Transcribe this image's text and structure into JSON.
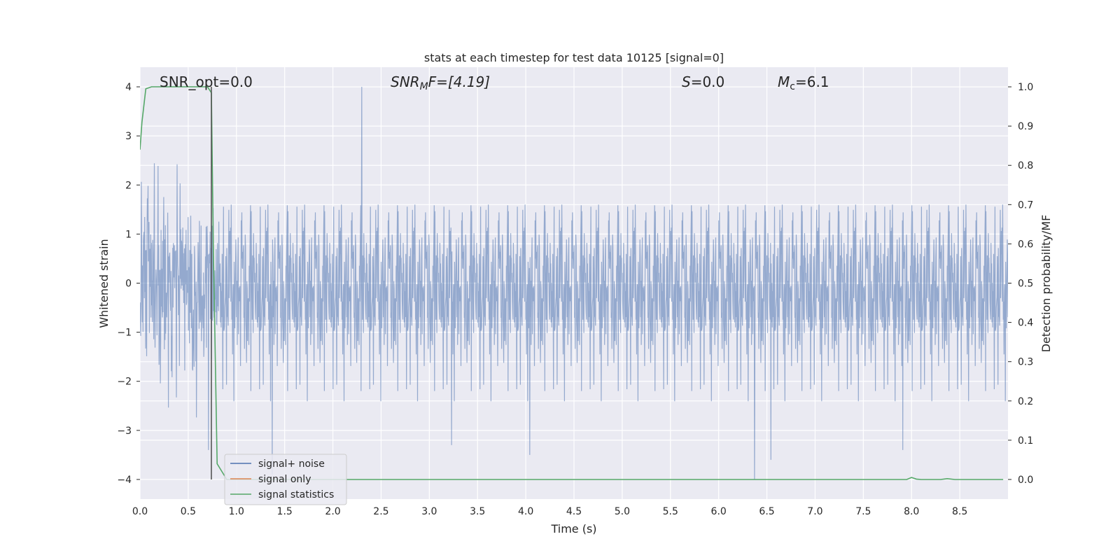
{
  "chart_data": {
    "type": "line",
    "title": "stats at each timestep for test data 10125 [signal=0]",
    "xlabel": "Time (s)",
    "ylabel_left": "Whitened strain",
    "ylabel_right": "Detection probability/MF",
    "xlim": [
      0.0,
      9.0
    ],
    "ylim_left": [
      -4.4,
      4.4
    ],
    "ylim_right": [
      -0.05,
      1.05
    ],
    "xticks": [
      "0.0",
      "0.5",
      "1.0",
      "1.5",
      "2.0",
      "2.5",
      "3.0",
      "3.5",
      "4.0",
      "4.5",
      "5.0",
      "5.5",
      "6.0",
      "6.5",
      "7.0",
      "7.5",
      "8.0",
      "8.5"
    ],
    "yticks_left": [
      "−4",
      "−3",
      "−2",
      "−1",
      "0",
      "1",
      "2",
      "3",
      "4"
    ],
    "yticks_right": [
      "0.0",
      "0.1",
      "0.2",
      "0.3",
      "0.4",
      "0.5",
      "0.6",
      "0.7",
      "0.8",
      "0.9",
      "1.0"
    ],
    "grid": true,
    "legend_position": "lower-left",
    "annotations": {
      "snr_opt": "SNR_opt=0.0",
      "snr_mf_prefix": "SNR",
      "snr_mf_sub": "M",
      "snr_mf_rest": "F=[4.19]",
      "s_sym": "S",
      "s_val": "=0.0",
      "mc_sym": "M",
      "mc_sub": "c",
      "mc_val": "=6.1"
    },
    "vline_x": 0.74,
    "series": [
      {
        "name": "signal+ noise",
        "color": "#4c72b0",
        "style": "gaussian noise, amplitude mostly within ±2, spikes to ±4",
        "peak_values": [
          [
            0.71,
            -3.4
          ],
          [
            1.37,
            -3.9
          ],
          [
            2.3,
            4.0
          ],
          [
            3.23,
            -3.3
          ],
          [
            4.04,
            -3.5
          ],
          [
            6.37,
            -4.0
          ],
          [
            6.54,
            -3.6
          ],
          [
            7.91,
            -3.4
          ]
        ]
      },
      {
        "name": "signal only",
        "color": "#dd8452",
        "values": []
      },
      {
        "name": "signal statistics",
        "color": "#55a868",
        "x": [
          0.0,
          0.02,
          0.06,
          0.12,
          0.2,
          0.4,
          0.6,
          0.7,
          0.74,
          0.76,
          0.8,
          0.9,
          1.0,
          2.0,
          3.0,
          4.0,
          5.0,
          6.0,
          7.0,
          7.95,
          8.0,
          8.05,
          8.1,
          8.3,
          8.37,
          8.45,
          8.6,
          8.95
        ],
        "values": [
          0.84,
          0.91,
          0.995,
          1.0,
          1.0,
          1.0,
          1.0,
          1.0,
          0.985,
          0.6,
          0.04,
          0.0,
          0.0,
          0.0,
          0.0,
          0.0,
          0.0,
          0.0,
          0.0,
          0.0,
          0.005,
          0.001,
          0.0,
          0.0,
          0.002,
          0.0,
          0.0,
          0.0
        ]
      }
    ]
  }
}
